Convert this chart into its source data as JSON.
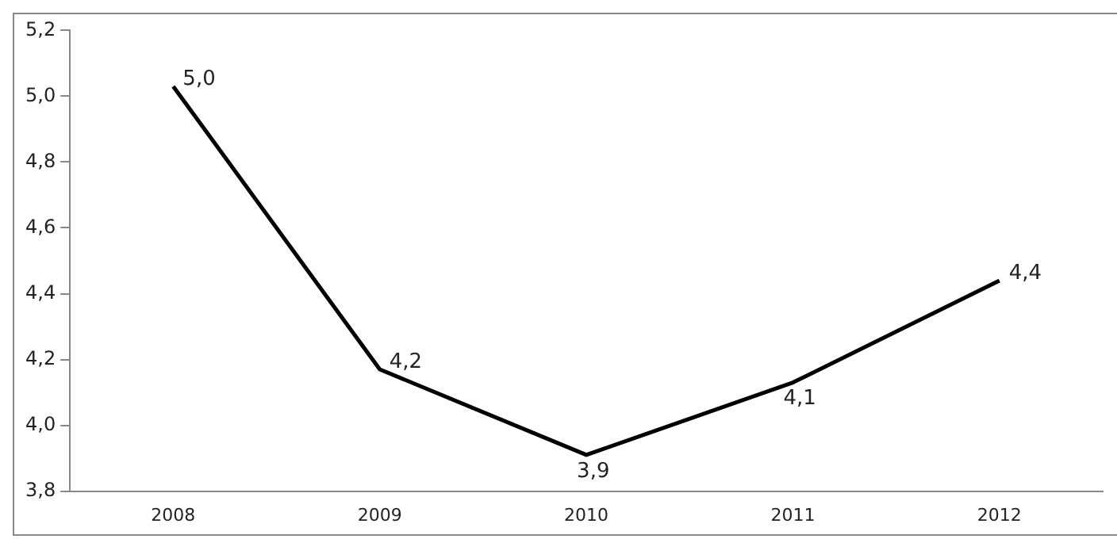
{
  "chart_data": {
    "type": "line",
    "categories": [
      "2008",
      "2009",
      "2010",
      "2011",
      "2012"
    ],
    "series": [
      {
        "color": "#000000",
        "values": [
          5.03,
          4.17,
          3.91,
          4.13,
          4.44
        ],
        "value_labels": [
          "5,0",
          "4,2",
          "3,9",
          "4,1",
          "4,4"
        ]
      }
    ],
    "ylim": [
      3.8,
      5.2
    ],
    "yticks": [
      {
        "value": 3.8,
        "label": "3,8"
      },
      {
        "value": 4.0,
        "label": "4,0"
      },
      {
        "value": 4.2,
        "label": "4,2"
      },
      {
        "value": 4.4,
        "label": "4,4"
      },
      {
        "value": 4.6,
        "label": "4,6"
      },
      {
        "value": 4.8,
        "label": "4,8"
      },
      {
        "value": 5.0,
        "label": "5,0"
      },
      {
        "value": 5.2,
        "label": "5,2"
      }
    ],
    "grid": false,
    "legend": false,
    "marker": "none",
    "line_style": "solid"
  }
}
